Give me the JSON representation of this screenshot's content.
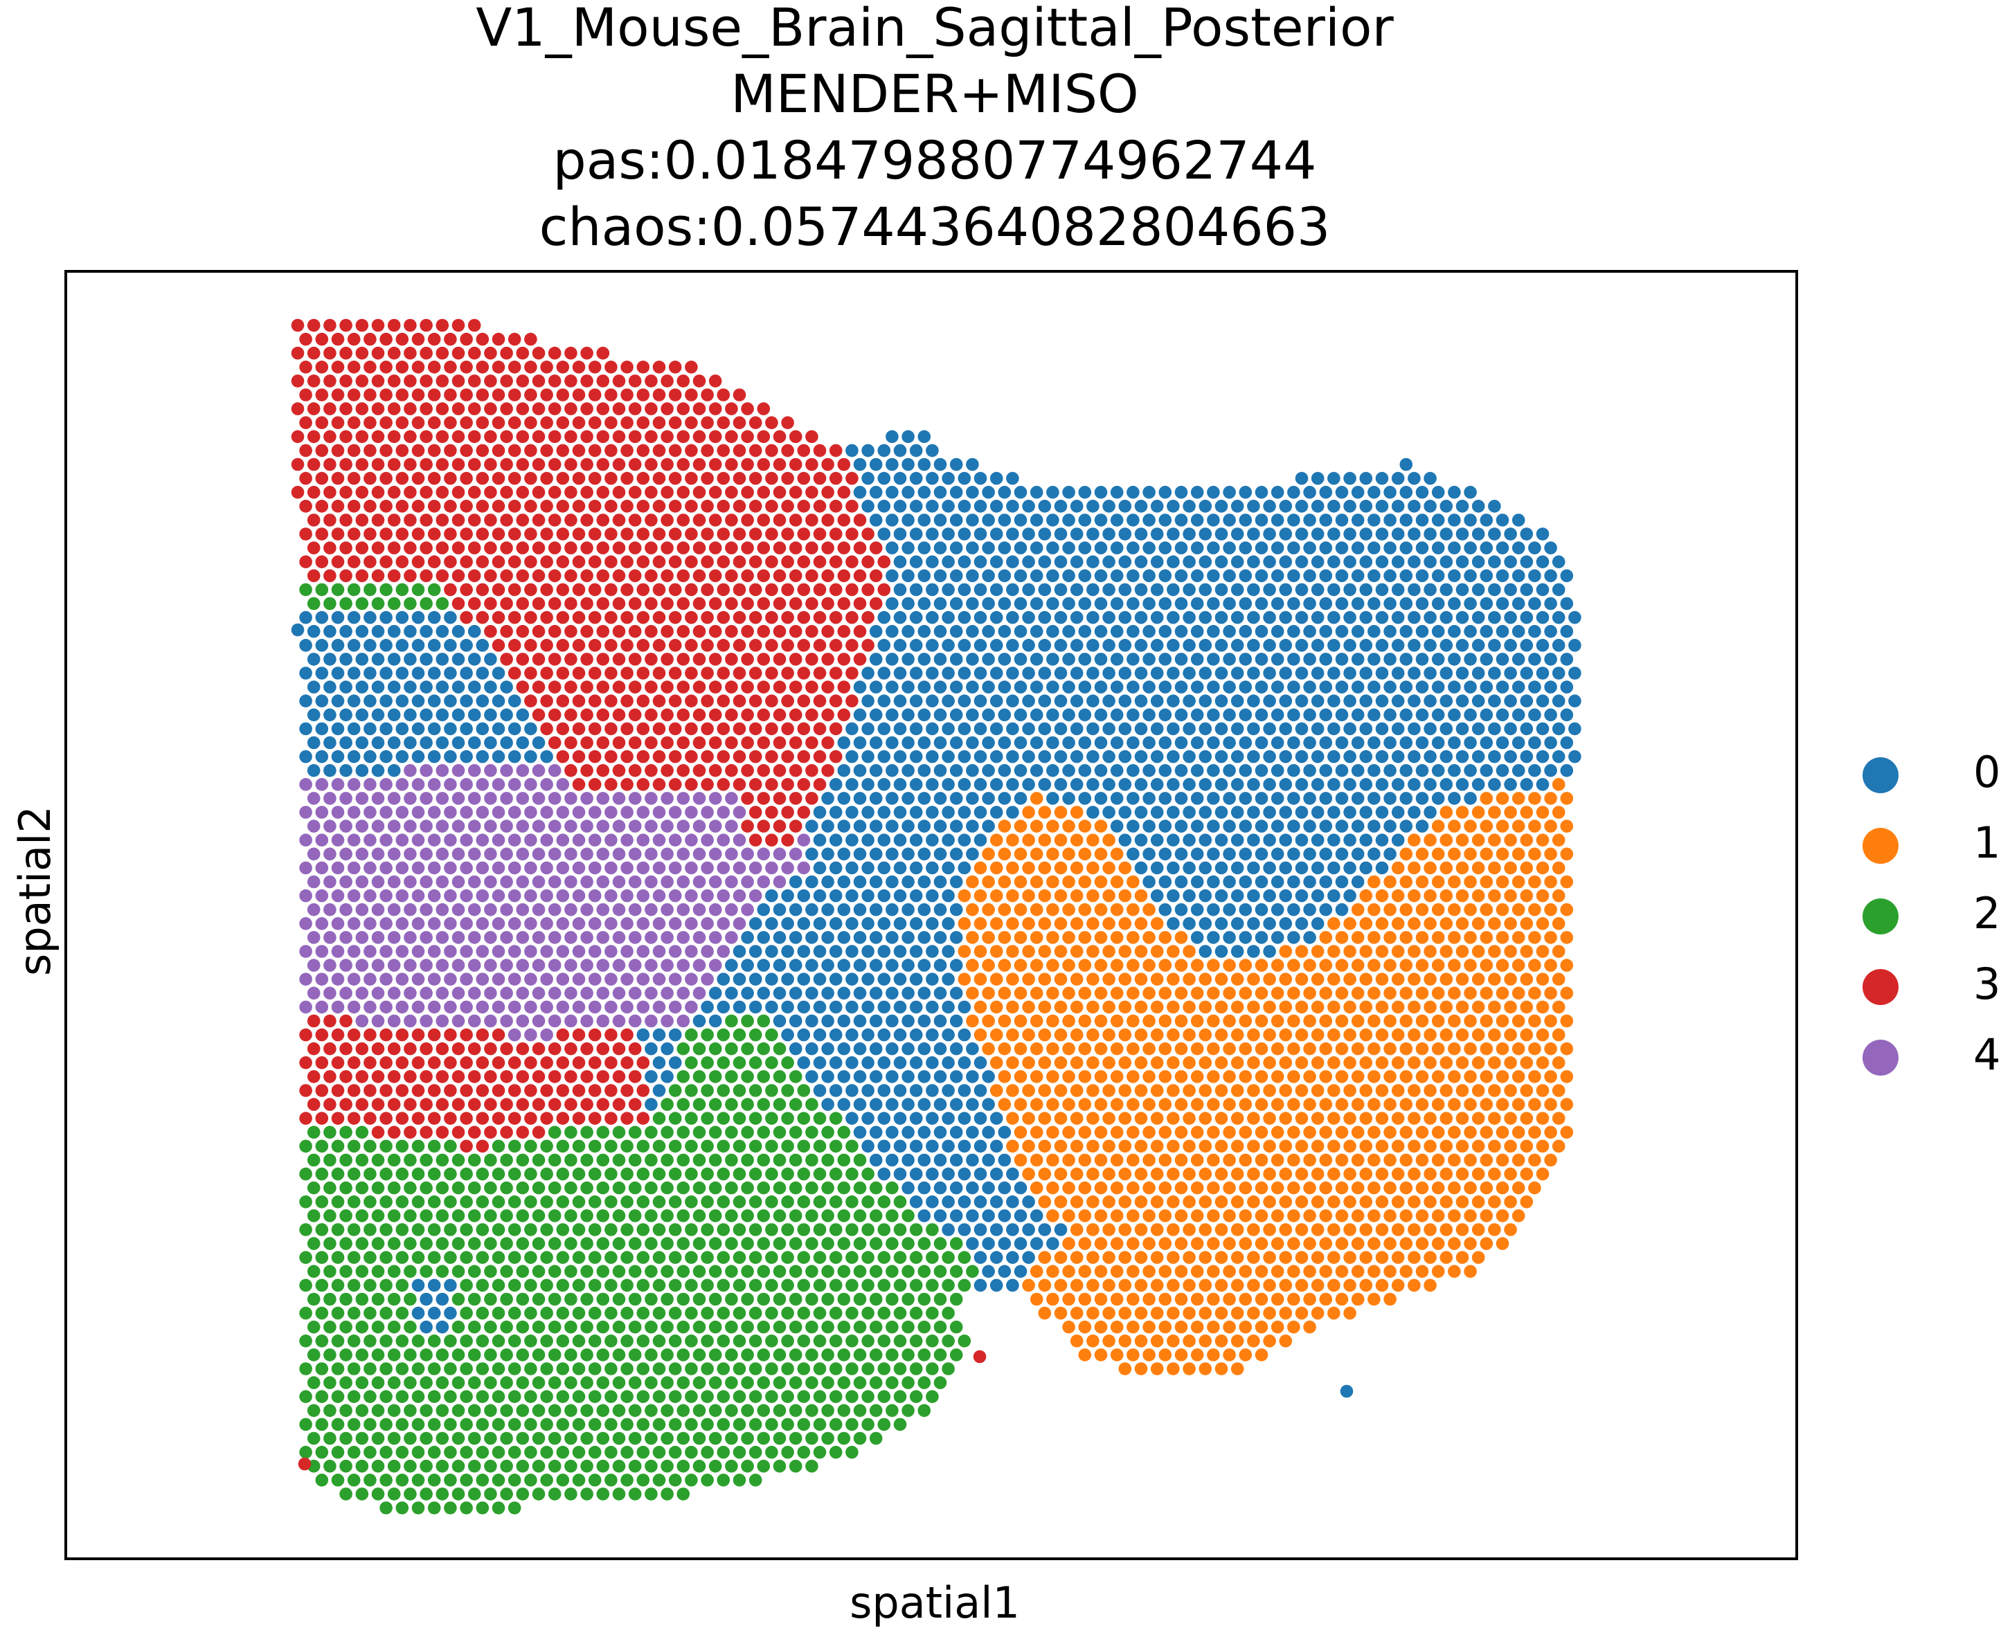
{
  "title_lines": [
    "V1_Mouse_Brain_Sagittal_Posterior",
    "MENDER+MISO",
    "pas:0.018479880774962744",
    "chaos:0.05744364082804663"
  ],
  "chart_data": {
    "type": "scatter",
    "xlabel": "spatial1",
    "ylabel": "spatial2",
    "y_inverted": true,
    "grid": false,
    "legend_position": "right",
    "categories": [
      "0",
      "1",
      "2",
      "3",
      "4"
    ],
    "colors": {
      "0": "#1f77b4",
      "1": "#ff7f0e",
      "2": "#2ca02c",
      "3": "#d62728",
      "4": "#9467bd"
    },
    "note_on_points": "Spots lie on a hexagonal lattice; cluster label of each spot is read from the regions listed below (polygons in the figure's spatial coordinate frame).",
    "tissue_extent": {
      "x": [
        0.0,
        1.0
      ],
      "y": [
        0.0,
        1.0
      ]
    }
  }
}
